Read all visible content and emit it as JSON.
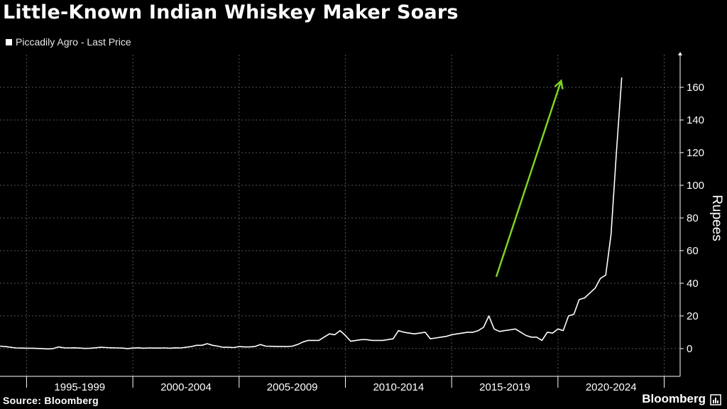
{
  "title": "Little-Known Indian Whiskey Maker Soars",
  "legend": {
    "label": "Piccadily Agro - Last Price"
  },
  "source": "Source: Bloomberg",
  "brand": "Bloomberg",
  "colors": {
    "background": "#000000",
    "line": "#ffffff",
    "arrow": "#7ed321",
    "grid": "#555555",
    "text": "#ffffff"
  },
  "chart_data": {
    "type": "line",
    "title": "Little-Known Indian Whiskey Maker Soars",
    "series": [
      {
        "name": "Piccadily Agro - Last Price",
        "x_start": 1993.75,
        "x_step": 0.25,
        "values": [
          1.5,
          1.2,
          0.8,
          0.4,
          0.3,
          0.2,
          0.2,
          0.1,
          0,
          -0.2,
          0,
          1,
          0.5,
          0.4,
          0.5,
          0.3,
          0.1,
          0.2,
          0.5,
          0.8,
          0.6,
          0.5,
          0.4,
          0.3,
          0,
          0.3,
          0.5,
          0.2,
          0.4,
          0.3,
          0.3,
          0.4,
          0.2,
          0.5,
          0.4,
          0.8,
          1.2,
          2,
          2,
          3,
          2,
          1.5,
          0.8,
          0.8,
          0.6,
          1.2,
          1,
          1,
          1.3,
          2.5,
          1.5,
          1.4,
          1.3,
          1.3,
          1.2,
          1.5,
          2.5,
          4,
          5,
          5,
          5,
          7,
          9,
          8.5,
          11,
          8,
          4.5,
          5,
          5.5,
          5.5,
          5,
          5,
          5,
          5.5,
          6,
          11,
          10,
          9.5,
          9,
          9.5,
          10,
          6,
          6.5,
          7,
          7.5,
          8.5,
          9,
          9.5,
          10,
          10,
          11,
          13,
          20,
          12,
          10.5,
          11,
          11.5,
          12,
          10,
          8,
          7,
          7,
          5,
          10,
          9.5,
          12,
          11,
          20,
          21,
          30,
          31,
          34,
          37,
          43,
          45,
          70,
          120,
          166
        ]
      }
    ],
    "x_tick_labels": [
      "1995-1999",
      "2000-2004",
      "2005-2009",
      "2010-2014",
      "2015-2019",
      "2020-2024"
    ],
    "x_tick_bounds": [
      1995,
      2000,
      2005,
      2010,
      2015,
      2020,
      2025
    ],
    "xlim": [
      1993.75,
      2025.75
    ],
    "y_ticks": [
      0,
      20,
      40,
      60,
      80,
      100,
      120,
      140,
      160
    ],
    "ylim": [
      -17,
      180
    ],
    "ylabel": "Rupees",
    "y_axis_side": "right",
    "grid": true,
    "annotations": [
      {
        "type": "arrow",
        "color": "#7ed321",
        "from": {
          "x": 2017.1,
          "y": 44
        },
        "to": {
          "x": 2020.15,
          "y": 164
        }
      }
    ]
  }
}
